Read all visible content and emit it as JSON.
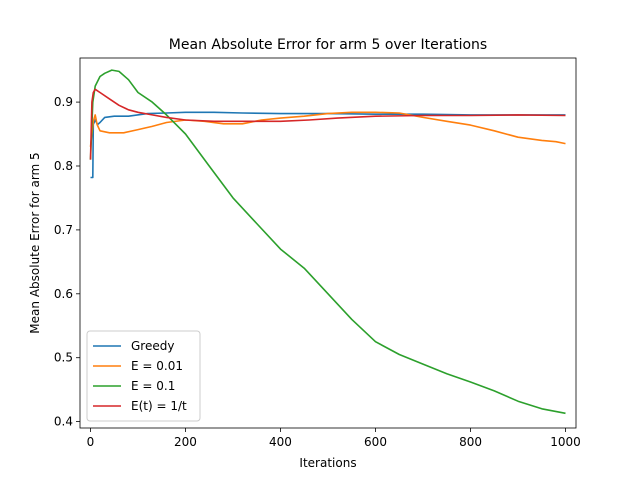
{
  "chart_data": {
    "type": "line",
    "title": "Mean Absolute Error for arm 5 over Iterations",
    "xlabel": "Iterations",
    "ylabel": "Mean Absolute Error for arm 5",
    "xlim": [
      -22,
      1022
    ],
    "ylim": [
      0.39,
      0.969
    ],
    "xticks": [
      0,
      200,
      400,
      600,
      800,
      1000
    ],
    "yticks": [
      0.4,
      0.5,
      0.6,
      0.7,
      0.8,
      0.9
    ],
    "grid": false,
    "legend_position": "lower-left",
    "series": [
      {
        "name": "Greedy",
        "color": "#1f77b4",
        "points": [
          [
            0,
            0.782
          ],
          [
            5,
            0.782
          ],
          [
            6,
            0.865
          ],
          [
            10,
            0.872
          ],
          [
            15,
            0.865
          ],
          [
            20,
            0.868
          ],
          [
            30,
            0.876
          ],
          [
            50,
            0.878
          ],
          [
            80,
            0.878
          ],
          [
            120,
            0.882
          ],
          [
            160,
            0.883
          ],
          [
            200,
            0.884
          ],
          [
            260,
            0.884
          ],
          [
            320,
            0.883
          ],
          [
            400,
            0.882
          ],
          [
            500,
            0.882
          ],
          [
            600,
            0.881
          ],
          [
            700,
            0.881
          ],
          [
            800,
            0.88
          ],
          [
            900,
            0.88
          ],
          [
            1000,
            0.88
          ]
        ]
      },
      {
        "name": "Ε = 0.01",
        "color": "#ff7f0e",
        "points": [
          [
            0,
            0.83
          ],
          [
            3,
            0.85
          ],
          [
            6,
            0.87
          ],
          [
            10,
            0.88
          ],
          [
            14,
            0.865
          ],
          [
            20,
            0.855
          ],
          [
            40,
            0.852
          ],
          [
            70,
            0.852
          ],
          [
            100,
            0.857
          ],
          [
            130,
            0.862
          ],
          [
            160,
            0.868
          ],
          [
            200,
            0.872
          ],
          [
            240,
            0.87
          ],
          [
            280,
            0.866
          ],
          [
            320,
            0.866
          ],
          [
            360,
            0.872
          ],
          [
            400,
            0.875
          ],
          [
            450,
            0.878
          ],
          [
            500,
            0.882
          ],
          [
            550,
            0.884
          ],
          [
            600,
            0.884
          ],
          [
            650,
            0.883
          ],
          [
            700,
            0.876
          ],
          [
            750,
            0.87
          ],
          [
            800,
            0.864
          ],
          [
            850,
            0.855
          ],
          [
            900,
            0.845
          ],
          [
            950,
            0.84
          ],
          [
            980,
            0.838
          ],
          [
            1000,
            0.835
          ]
        ]
      },
      {
        "name": "Ε = 0.1",
        "color": "#2ca02c",
        "points": [
          [
            0,
            0.81
          ],
          [
            5,
            0.9
          ],
          [
            10,
            0.925
          ],
          [
            20,
            0.94
          ],
          [
            30,
            0.945
          ],
          [
            45,
            0.95
          ],
          [
            60,
            0.948
          ],
          [
            80,
            0.935
          ],
          [
            100,
            0.915
          ],
          [
            130,
            0.9
          ],
          [
            160,
            0.88
          ],
          [
            200,
            0.85
          ],
          [
            250,
            0.8
          ],
          [
            300,
            0.75
          ],
          [
            350,
            0.71
          ],
          [
            400,
            0.67
          ],
          [
            450,
            0.64
          ],
          [
            500,
            0.6
          ],
          [
            550,
            0.56
          ],
          [
            600,
            0.525
          ],
          [
            650,
            0.505
          ],
          [
            700,
            0.49
          ],
          [
            750,
            0.475
          ],
          [
            800,
            0.462
          ],
          [
            850,
            0.448
          ],
          [
            900,
            0.432
          ],
          [
            950,
            0.42
          ],
          [
            1000,
            0.413
          ]
        ]
      },
      {
        "name": "Ε(t) = 1/t",
        "color": "#d62728",
        "points": [
          [
            0,
            0.81
          ],
          [
            3,
            0.9
          ],
          [
            6,
            0.915
          ],
          [
            10,
            0.92
          ],
          [
            20,
            0.915
          ],
          [
            40,
            0.905
          ],
          [
            60,
            0.895
          ],
          [
            80,
            0.888
          ],
          [
            100,
            0.884
          ],
          [
            130,
            0.88
          ],
          [
            160,
            0.876
          ],
          [
            200,
            0.872
          ],
          [
            260,
            0.87
          ],
          [
            320,
            0.87
          ],
          [
            400,
            0.87
          ],
          [
            460,
            0.872
          ],
          [
            520,
            0.875
          ],
          [
            600,
            0.878
          ],
          [
            700,
            0.879
          ],
          [
            800,
            0.879
          ],
          [
            900,
            0.88
          ],
          [
            1000,
            0.879
          ]
        ]
      }
    ]
  }
}
